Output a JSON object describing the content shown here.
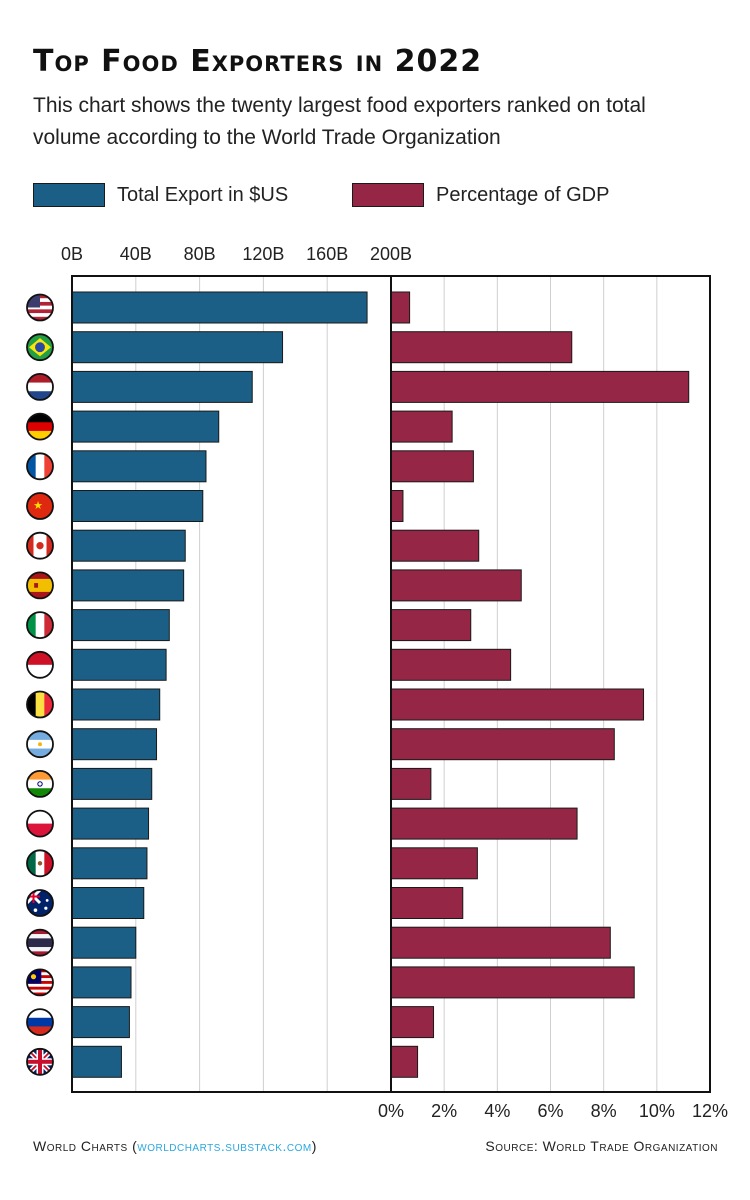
{
  "title": "Top Food Exporters in 2022",
  "subtitle": "This chart shows the twenty largest food exporters ranked on total volume according to the World Trade Organization",
  "legend": [
    {
      "label": "Total Export in $US",
      "color": "#1b5f86"
    },
    {
      "label": "Percentage of GDP",
      "color": "#962646"
    }
  ],
  "footer": {
    "brand": "World Charts (",
    "link": "worldcharts.substack.com",
    "brand_close": ")",
    "source": "Source: World Trade Organization"
  },
  "chart_data": {
    "type": "bar",
    "orientation": "horizontal",
    "categories": [
      "United States",
      "Brazil",
      "Netherlands",
      "Germany",
      "France",
      "China",
      "Canada",
      "Spain",
      "Italy",
      "Indonesia",
      "Belgium",
      "Argentina",
      "India",
      "Poland",
      "Mexico",
      "Australia",
      "Thailand",
      "Malaysia",
      "Russia",
      "United Kingdom"
    ],
    "series": [
      {
        "name": "Total Export in $US",
        "color": "#1b5f86",
        "xlim": [
          0,
          200
        ],
        "tick_labels": [
          "0B",
          "40B",
          "80B",
          "120B",
          "160B",
          "200B"
        ],
        "values": [
          185,
          132,
          113,
          92,
          84,
          82,
          71,
          70,
          61,
          59,
          55,
          53,
          50,
          48,
          47,
          45,
          40,
          37,
          36,
          31
        ]
      },
      {
        "name": "Percentage of GDP",
        "color": "#962646",
        "xlim": [
          0,
          12
        ],
        "tick_labels": [
          "0%",
          "2%",
          "4%",
          "6%",
          "8%",
          "10%",
          "12%"
        ],
        "values": [
          0.7,
          6.8,
          11.2,
          2.3,
          3.1,
          0.45,
          3.3,
          4.9,
          3.0,
          4.5,
          9.5,
          8.4,
          1.5,
          7.0,
          3.25,
          2.7,
          8.25,
          9.15,
          1.6,
          1.0
        ]
      }
    ],
    "flags": [
      "us-flag-icon",
      "brazil-flag-icon",
      "netherlands-flag-icon",
      "germany-flag-icon",
      "france-flag-icon",
      "china-flag-icon",
      "canada-flag-icon",
      "spain-flag-icon",
      "italy-flag-icon",
      "indonesia-flag-icon",
      "belgium-flag-icon",
      "argentina-flag-icon",
      "india-flag-icon",
      "poland-flag-icon",
      "mexico-flag-icon",
      "australia-flag-icon",
      "thailand-flag-icon",
      "malaysia-flag-icon",
      "russia-flag-icon",
      "uk-flag-icon"
    ]
  }
}
